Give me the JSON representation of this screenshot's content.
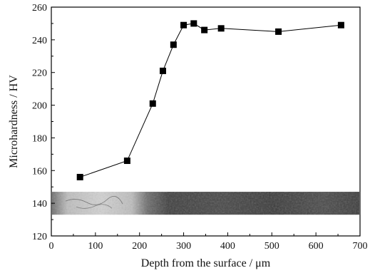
{
  "chart_data": {
    "type": "line",
    "xlabel": "Depth from the surface / μm",
    "ylabel": "Microhardness / HV",
    "xlim": [
      0,
      700
    ],
    "ylim": [
      120,
      260
    ],
    "xticks": [
      0,
      100,
      200,
      300,
      400,
      500,
      600,
      700
    ],
    "yticks": [
      120,
      140,
      160,
      180,
      200,
      220,
      240,
      260
    ],
    "grid": false,
    "marker": "square",
    "series": [
      {
        "x": [
          65,
          172,
          230,
          253,
          277,
          300,
          323,
          347,
          385,
          515,
          657
        ],
        "y": [
          156,
          166,
          201,
          221,
          237,
          249,
          250,
          246,
          247,
          245,
          249
        ]
      }
    ],
    "inset_image": "cross-section micrograph strip",
    "inset_band_y": [
      133,
      147
    ]
  }
}
